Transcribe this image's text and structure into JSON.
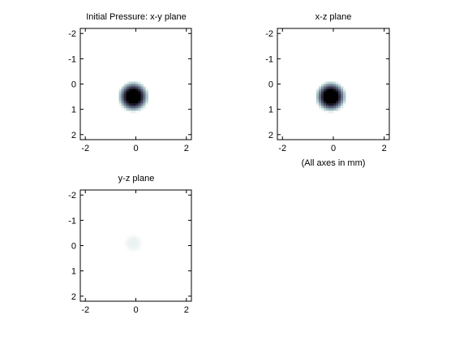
{
  "note": "(All axes in mm)",
  "chart_data": [
    {
      "type": "heatmap",
      "title": "Initial Pressure: x-y plane",
      "xticks": [
        -2,
        0,
        2
      ],
      "yticks": [
        -2,
        -1,
        0,
        1,
        2
      ],
      "xlim": [
        -2.2,
        2.2
      ],
      "ylim": [
        -2.2,
        2.2
      ],
      "y_reversed": true,
      "colormap": "bone-reversed",
      "blob": {
        "center_x": -0.1,
        "center_y": 0.5,
        "radius": 0.5,
        "peak": 1.0
      }
    },
    {
      "type": "heatmap",
      "title": "x-z plane",
      "xticks": [
        -2,
        0,
        2
      ],
      "yticks": [
        -2,
        -1,
        0,
        1,
        2
      ],
      "xlim": [
        -2.2,
        2.2
      ],
      "ylim": [
        -2.2,
        2.2
      ],
      "y_reversed": true,
      "colormap": "bone-reversed",
      "blob": {
        "center_x": -0.1,
        "center_y": 0.5,
        "radius": 0.5,
        "peak": 1.0
      }
    },
    {
      "type": "heatmap",
      "title": "y-z plane",
      "xticks": [
        -2,
        0,
        2
      ],
      "yticks": [
        -2,
        -1,
        0,
        1,
        2
      ],
      "xlim": [
        -2.2,
        2.2
      ],
      "ylim": [
        -2.2,
        2.2
      ],
      "y_reversed": true,
      "colormap": "bone-reversed",
      "blob": {
        "center_x": -0.1,
        "center_y": -0.1,
        "radius": 0.3,
        "peak": 0.06
      }
    }
  ]
}
